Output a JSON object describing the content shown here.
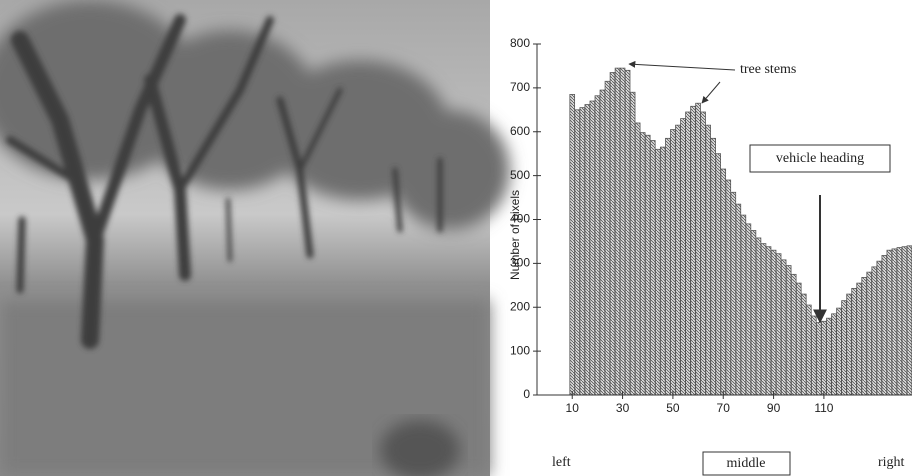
{
  "chart_data": {
    "type": "bar",
    "y_label": "Number of pixels",
    "annotations": [
      "tree stems",
      "vehicle heading"
    ],
    "position_labels": [
      "left",
      "middle",
      "right"
    ],
    "x": [
      10,
      12,
      14,
      16,
      18,
      20,
      22,
      24,
      26,
      28,
      30,
      32,
      34,
      36,
      38,
      40,
      42,
      44,
      46,
      48,
      50,
      52,
      54,
      56,
      58,
      60,
      62,
      64,
      66,
      68,
      70,
      72,
      74,
      76,
      78,
      80,
      82,
      84,
      86,
      88,
      90,
      92,
      94,
      96,
      98,
      100,
      102,
      104,
      106,
      108,
      110,
      112,
      114,
      116,
      118,
      120,
      122,
      124,
      126,
      128,
      130,
      132,
      134,
      136,
      138,
      140,
      142,
      144
    ],
    "values": [
      685,
      650,
      655,
      662,
      670,
      682,
      695,
      715,
      735,
      745,
      745,
      740,
      690,
      620,
      598,
      592,
      580,
      560,
      565,
      585,
      605,
      615,
      630,
      645,
      658,
      665,
      645,
      615,
      585,
      550,
      515,
      490,
      462,
      435,
      410,
      390,
      375,
      358,
      345,
      338,
      330,
      322,
      308,
      295,
      275,
      255,
      230,
      205,
      180,
      165,
      168,
      175,
      185,
      198,
      215,
      230,
      243,
      255,
      268,
      280,
      292,
      305,
      318,
      330,
      333,
      336,
      338,
      340
    ],
    "color": "#555555",
    "xlim": [
      -4,
      145
    ],
    "xticks": [
      10,
      30,
      50,
      70,
      90,
      110
    ],
    "ylim": [
      0,
      800
    ],
    "yticks": [
      0,
      100,
      200,
      300,
      400,
      500,
      600,
      700,
      800
    ],
    "grid": false
  }
}
